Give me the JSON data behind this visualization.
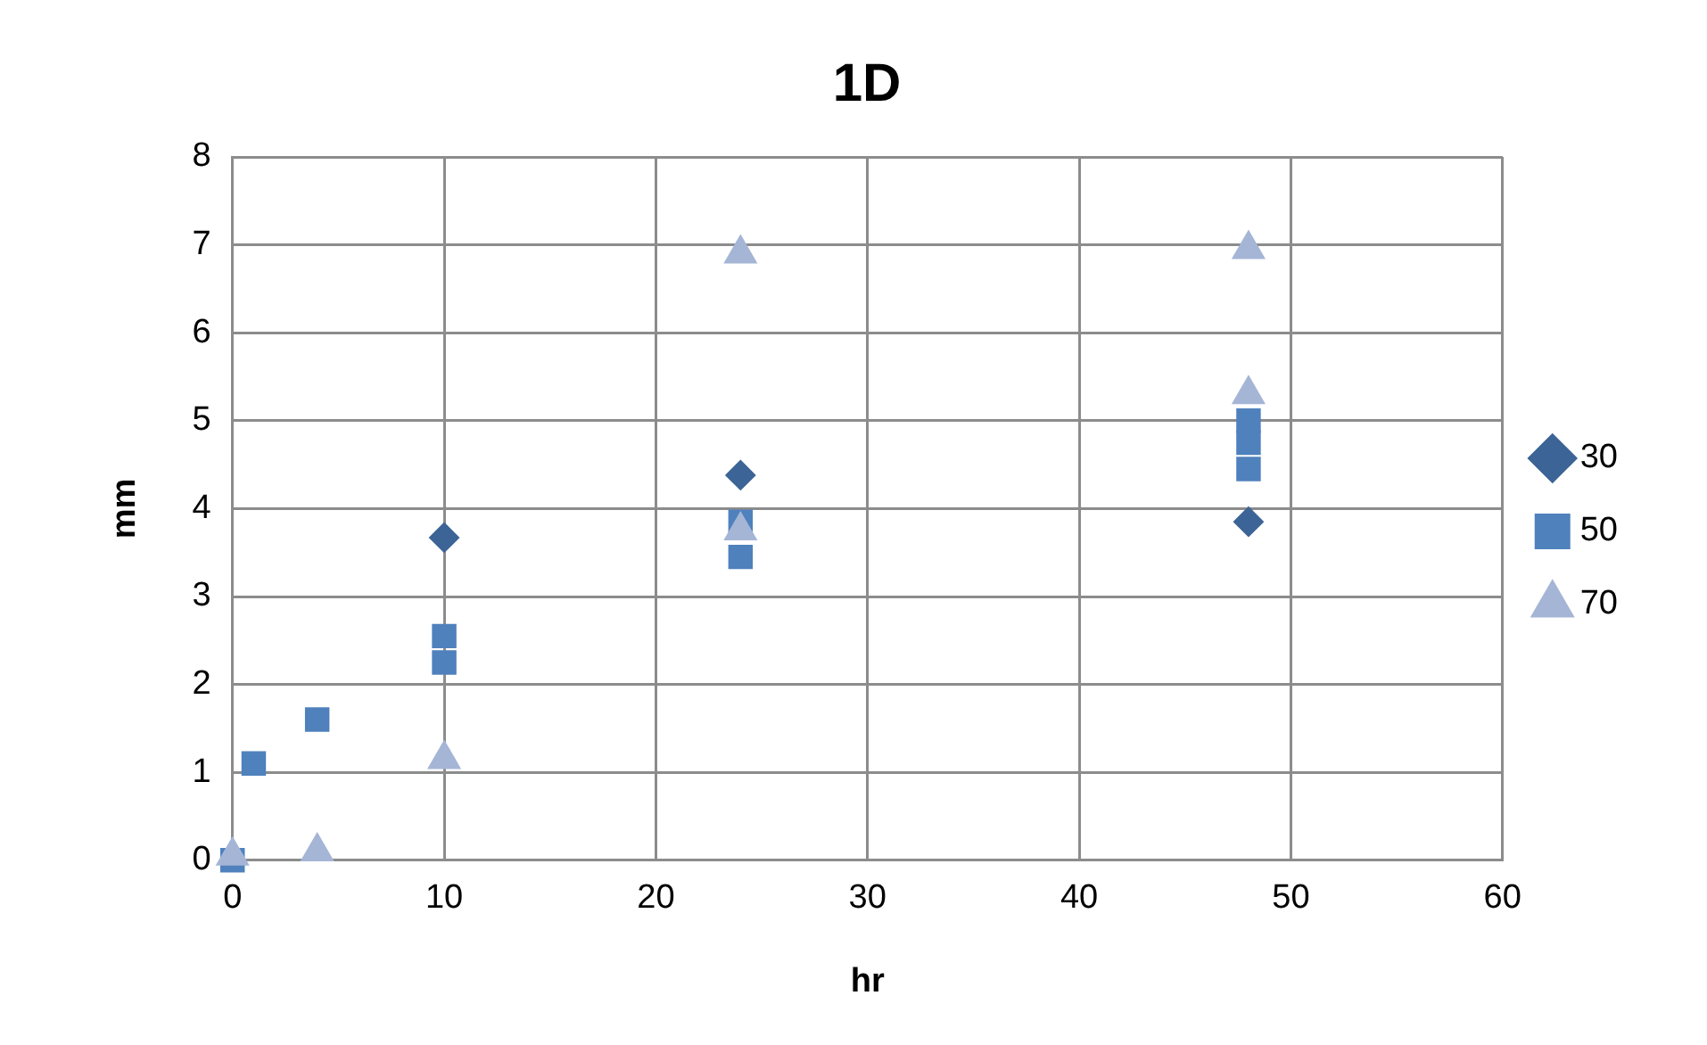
{
  "chart_data": {
    "type": "scatter",
    "title": "1D",
    "xlabel": "hr",
    "ylabel": "mm",
    "xlim": [
      0,
      60
    ],
    "xticks": [
      0,
      10,
      20,
      30,
      40,
      50,
      60
    ],
    "ylim": [
      0,
      8
    ],
    "yticks": [
      0,
      1,
      2,
      3,
      4,
      5,
      6,
      7,
      8
    ],
    "grid": true,
    "legend": "right",
    "series": [
      {
        "name": "30",
        "color": "#3c6496",
        "marker": "diamond",
        "x": [
          10,
          24,
          48
        ],
        "values": [
          3.67,
          4.38,
          3.85
        ]
      },
      {
        "name": "50",
        "color": "#4f81bd",
        "marker": "square",
        "x": [
          0,
          1,
          4,
          10,
          10,
          24,
          24,
          48,
          48,
          48
        ],
        "values": [
          0,
          1.1,
          1.6,
          2.25,
          2.55,
          3.45,
          3.85,
          4.45,
          4.75,
          5.0
        ]
      },
      {
        "name": "70",
        "color": "#a5b5d6",
        "marker": "triangle",
        "x": [
          0,
          4,
          10,
          24,
          24,
          48,
          48
        ],
        "values": [
          0.05,
          0.1,
          1.15,
          3.75,
          6.9,
          5.3,
          6.95
        ]
      }
    ]
  }
}
